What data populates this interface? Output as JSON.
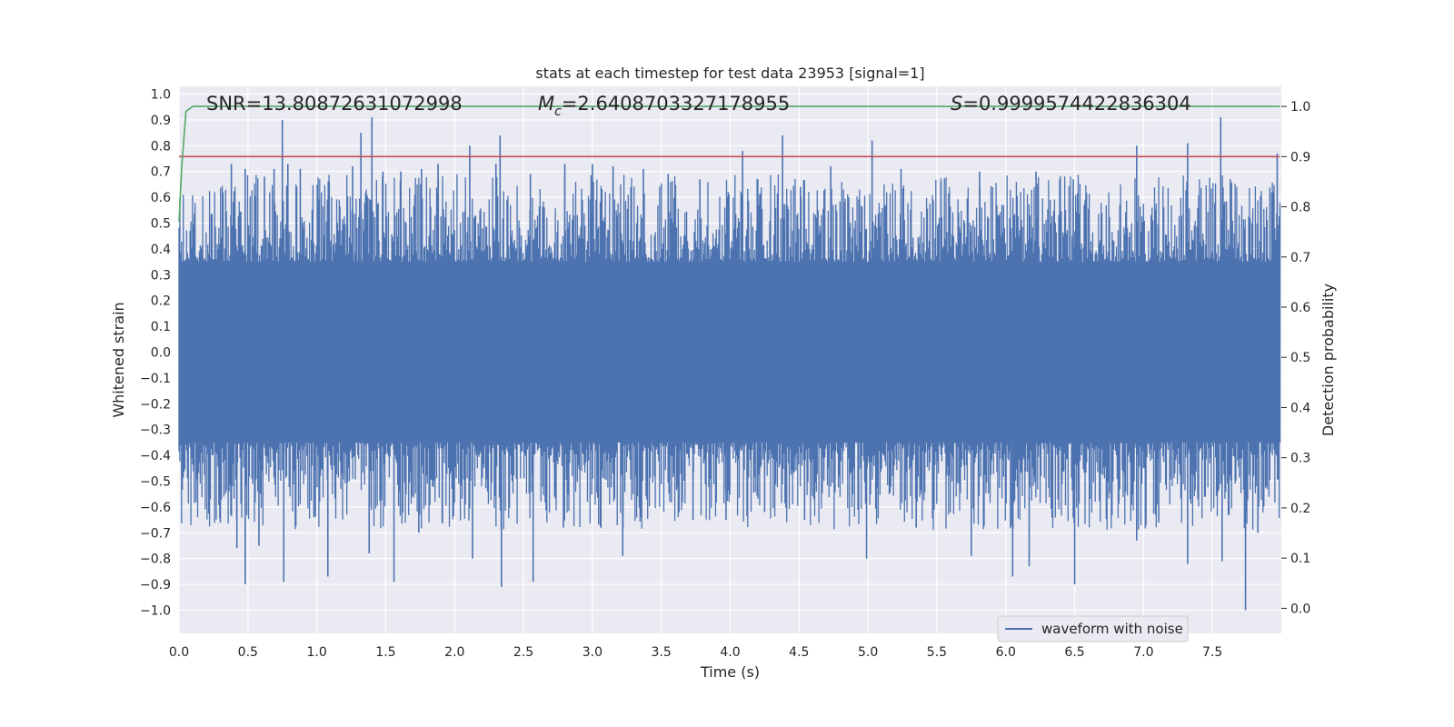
{
  "chart_data": {
    "type": "line",
    "title": "stats at each timestep for test data 23953 [signal=1]",
    "xlabel": "Time (s)",
    "ylabel": "Whitened strain",
    "y2label": "Detection probability",
    "xlim": [
      0.0,
      8.0
    ],
    "ylim": [
      -1.09,
      1.03
    ],
    "y2lim": [
      -0.05,
      1.04
    ],
    "xticks": [
      0.0,
      0.5,
      1.0,
      1.5,
      2.0,
      2.5,
      3.0,
      3.5,
      4.0,
      4.5,
      5.0,
      5.5,
      6.0,
      6.5,
      7.0,
      7.5
    ],
    "yticks": [
      -1.0,
      -0.9,
      -0.8,
      -0.7,
      -0.6,
      -0.5,
      -0.4,
      -0.3,
      -0.2,
      -0.1,
      0.0,
      0.1,
      0.2,
      0.3,
      0.4,
      0.5,
      0.6,
      0.7,
      0.8,
      0.9,
      1.0
    ],
    "y2ticks": [
      0.0,
      0.1,
      0.2,
      0.3,
      0.4,
      0.5,
      0.6,
      0.7,
      0.8,
      0.9,
      1.0
    ],
    "grid": true,
    "legend_placement": "lower-right",
    "legend": [
      "waveform with noise"
    ],
    "annotations": {
      "snr": "SNR=13.80872631072998",
      "mc_symbol": "M",
      "mc_sub": "c",
      "mc_value": "=2.6408703327178955",
      "s_symbol": "S",
      "s_value": "=0.9999574422836304"
    },
    "series": [
      {
        "name": "waveform with noise",
        "axis": "left",
        "color": "#4c72b0",
        "kind": "noise",
        "t_range": [
          0.0,
          7.99
        ],
        "core_amplitude": 0.33,
        "peak_spikes": [
          [
            0.38,
            0.73
          ],
          [
            0.48,
            0.71
          ],
          [
            0.55,
            0.51
          ],
          [
            0.62,
            0.68
          ],
          [
            0.69,
            0.71
          ],
          [
            0.75,
            0.9
          ],
          [
            0.79,
            0.73
          ],
          [
            0.88,
            0.71
          ],
          [
            1.09,
            0.66
          ],
          [
            1.26,
            0.72
          ],
          [
            1.32,
            0.85
          ],
          [
            1.4,
            0.91
          ],
          [
            1.48,
            0.7
          ],
          [
            1.61,
            0.7
          ],
          [
            1.76,
            0.71
          ],
          [
            1.88,
            0.73
          ],
          [
            2.11,
            0.8
          ],
          [
            2.3,
            0.73
          ],
          [
            2.33,
            0.84
          ],
          [
            2.55,
            0.69
          ],
          [
            2.8,
            0.73
          ],
          [
            3.0,
            0.73
          ],
          [
            3.15,
            0.72
          ],
          [
            3.37,
            0.71
          ],
          [
            3.55,
            0.69
          ],
          [
            3.78,
            0.67
          ],
          [
            4.09,
            0.78
          ],
          [
            4.38,
            0.84
          ],
          [
            4.51,
            0.64
          ],
          [
            4.73,
            0.72
          ],
          [
            4.86,
            0.6
          ],
          [
            5.03,
            0.82
          ],
          [
            5.24,
            0.71
          ],
          [
            5.53,
            0.66
          ],
          [
            5.81,
            0.7
          ],
          [
            6.22,
            0.7
          ],
          [
            6.49,
            0.67
          ],
          [
            6.95,
            0.8
          ],
          [
            7.32,
            0.81
          ],
          [
            7.56,
            0.91
          ],
          [
            7.63,
            0.67
          ],
          [
            7.97,
            0.77
          ]
        ],
        "trough_spikes": [
          [
            0.3,
            -0.66
          ],
          [
            0.42,
            -0.76
          ],
          [
            0.48,
            -0.9
          ],
          [
            0.58,
            -0.75
          ],
          [
            0.76,
            -0.89
          ],
          [
            0.98,
            -0.64
          ],
          [
            1.08,
            -0.87
          ],
          [
            1.38,
            -0.78
          ],
          [
            1.56,
            -0.89
          ],
          [
            1.74,
            -0.7
          ],
          [
            1.91,
            -0.66
          ],
          [
            2.13,
            -0.8
          ],
          [
            2.34,
            -0.91
          ],
          [
            2.57,
            -0.89
          ],
          [
            2.79,
            -0.68
          ],
          [
            3.22,
            -0.79
          ],
          [
            3.73,
            -0.65
          ],
          [
            3.97,
            -0.65
          ],
          [
            4.25,
            -0.62
          ],
          [
            4.54,
            -0.65
          ],
          [
            4.99,
            -0.8
          ],
          [
            5.35,
            -0.68
          ],
          [
            5.75,
            -0.79
          ],
          [
            6.05,
            -0.87
          ],
          [
            6.17,
            -0.83
          ],
          [
            6.5,
            -0.9
          ],
          [
            6.95,
            -0.73
          ],
          [
            7.11,
            -0.66
          ],
          [
            7.32,
            -0.82
          ],
          [
            7.57,
            -0.81
          ],
          [
            7.74,
            -1.0
          ],
          [
            7.83,
            -0.7
          ]
        ]
      },
      {
        "name": "",
        "axis": "right",
        "color": "#dd8452",
        "kind": "line",
        "x": [
          0.0,
          7.99
        ],
        "y": [
          0.9,
          0.9
        ]
      },
      {
        "name": "",
        "axis": "right",
        "color": "#55a868",
        "kind": "line",
        "x": [
          0.0,
          0.02,
          0.05,
          0.1,
          0.12,
          0.2,
          1.0,
          7.99
        ],
        "y": [
          0.77,
          0.88,
          0.99,
          1.0,
          1.0,
          1.0,
          1.0,
          1.0
        ]
      }
    ]
  }
}
